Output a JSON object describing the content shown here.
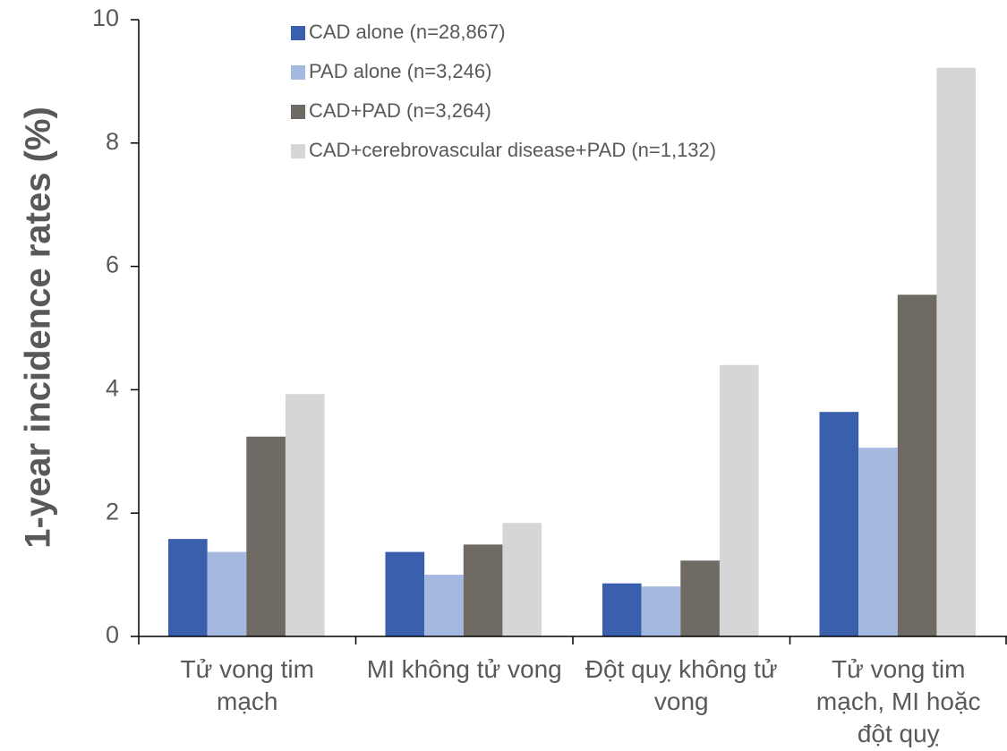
{
  "chart_data": {
    "type": "bar",
    "y_label": "1-year incidence rates (%)",
    "categories": [
      "Tử vong tim mạch",
      "MI không tử vong",
      "Đột quỵ không tử vong",
      "Tử vong tim mạch, MI hoặc đột quỵ"
    ],
    "series": [
      {
        "name": "CAD alone (n=28,867)",
        "color": "#3a5fac",
        "values": [
          1.58,
          1.37,
          0.86,
          3.64
        ]
      },
      {
        "name": "PAD alone (n=3,246)",
        "color": "#a4b8e0",
        "values": [
          1.37,
          1.0,
          0.81,
          3.06
        ]
      },
      {
        "name": "CAD+PAD (n=3,264)",
        "color": "#6f6b64",
        "values": [
          3.24,
          1.49,
          1.23,
          5.54
        ]
      },
      {
        "name": "CAD+cerebrovascular disease+PAD (n=1,132)",
        "color": "#d6d6d6",
        "values": [
          3.93,
          1.84,
          4.4,
          9.22
        ]
      }
    ],
    "ylim": [
      0,
      10
    ],
    "yticks": [
      0,
      2,
      4,
      6,
      8,
      10
    ],
    "legend": "top"
  }
}
